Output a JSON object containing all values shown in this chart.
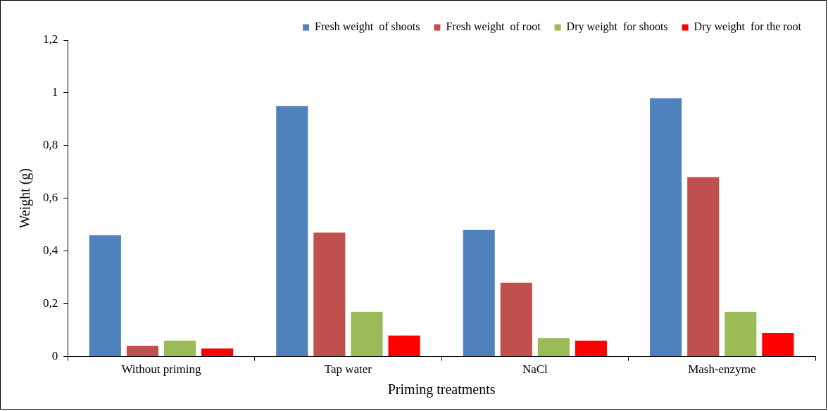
{
  "chart_data": {
    "type": "bar",
    "xlabel": "Priming treatments",
    "ylabel": "Weight (g)",
    "categories": [
      "Without priming",
      "Tap water",
      "NaCl",
      "Mash-enzyme"
    ],
    "series": [
      {
        "name": "Fresh weight  of shoots",
        "color": "#4f81bd",
        "values": [
          0.46,
          0.95,
          0.48,
          0.98
        ]
      },
      {
        "name": "Fresh weight  of root",
        "color": "#c0504d",
        "values": [
          0.04,
          0.47,
          0.28,
          0.68
        ]
      },
      {
        "name": "Dry weight  for shoots",
        "color": "#9bbb59",
        "values": [
          0.06,
          0.17,
          0.07,
          0.17
        ]
      },
      {
        "name": "Dry weight  for the root",
        "color": "#ff0000",
        "values": [
          0.03,
          0.08,
          0.06,
          0.09
        ]
      }
    ],
    "ylim": [
      0,
      1.2
    ],
    "yticks": [
      0,
      {
        "value": 0.2,
        "label": "0,2"
      },
      {
        "value": 0.4,
        "label": "0,4"
      },
      {
        "value": 0.6,
        "label": "0,6"
      },
      {
        "value": 0.8,
        "label": "0,8"
      },
      1,
      {
        "value": 1.2,
        "label": "1,2"
      }
    ],
    "legend": "top right"
  }
}
